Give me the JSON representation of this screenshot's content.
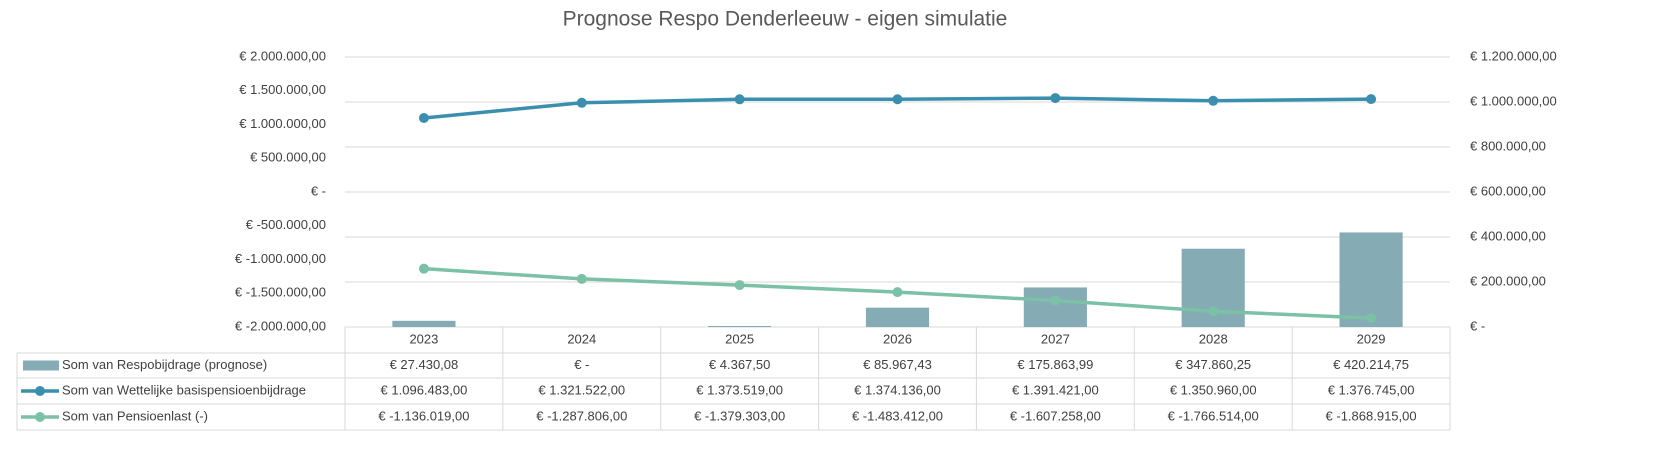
{
  "chart_data": {
    "type": "combo",
    "title": "Prognose Respo Denderleeuw - eigen simulatie",
    "categories": [
      "2023",
      "2024",
      "2025",
      "2026",
      "2027",
      "2028",
      "2029"
    ],
    "ylim": [
      -2000000,
      2000000
    ],
    "yticks": [
      {
        "value": 2000000,
        "label": "€ 2.000.000,00"
      },
      {
        "value": 1500000,
        "label": "€ 1.500.000,00"
      },
      {
        "value": 1000000,
        "label": "€ 1.000.000,00"
      },
      {
        "value": 500000,
        "label": "€ 500.000,00"
      },
      {
        "value": 0,
        "label": "€ -"
      },
      {
        "value": -500000,
        "label": "€ -500.000,00"
      },
      {
        "value": -1000000,
        "label": "€ -1.000.000,00"
      },
      {
        "value": -1500000,
        "label": "€ -1.500.000,00"
      },
      {
        "value": -2000000,
        "label": "€ -2.000.000,00"
      }
    ],
    "y2lim": [
      0,
      1200000
    ],
    "y2ticks": [
      {
        "value": 1200000,
        "label": "€ 1.200.000,00"
      },
      {
        "value": 1000000,
        "label": "€ 1.000.000,00"
      },
      {
        "value": 800000,
        "label": "€ 800.000,00"
      },
      {
        "value": 600000,
        "label": "€ 600.000,00"
      },
      {
        "value": 400000,
        "label": "€ 400.000,00"
      },
      {
        "value": 200000,
        "label": "€ 200.000,00"
      },
      {
        "value": 0,
        "label": "€ -"
      }
    ],
    "grid": true,
    "series": [
      {
        "name": "Som van Respobijdrage (prognose)",
        "type": "bar",
        "axis": "y2",
        "color": "#85abb5",
        "values": [
          27430.08,
          0,
          4367.5,
          85967.43,
          175863.99,
          347860.25,
          420214.75
        ],
        "value_labels": [
          "€ 27.430,08",
          "€ -",
          "€ 4.367,50",
          "€ 85.967,43",
          "€ 175.863,99",
          "€ 347.860,25",
          "€ 420.214,75"
        ]
      },
      {
        "name": "Som van Wettelijke basispensioenbijdrage",
        "type": "line",
        "color": "#3a8fae",
        "values": [
          1096483,
          1321522,
          1373519,
          1374136,
          1391421,
          1350960,
          1376745
        ],
        "value_labels": [
          "€ 1.096.483,00",
          "€ 1.321.522,00",
          "€ 1.373.519,00",
          "€ 1.374.136,00",
          "€ 1.391.421,00",
          "€ 1.350.960,00",
          "€ 1.376.745,00"
        ]
      },
      {
        "name": "Som van Pensioenlast (-)",
        "type": "line",
        "color": "#7bc1a5",
        "values": [
          -1136019,
          -1287806,
          -1379303,
          -1483412,
          -1607258,
          -1766514,
          -1868915
        ],
        "value_labels": [
          "€ -1.136.019,00",
          "€ -1.287.806,00",
          "€ -1.379.303,00",
          "€ -1.483.412,00",
          "€ -1.607.258,00",
          "€ -1.766.514,00",
          "€ -1.868.915,00"
        ]
      }
    ]
  }
}
